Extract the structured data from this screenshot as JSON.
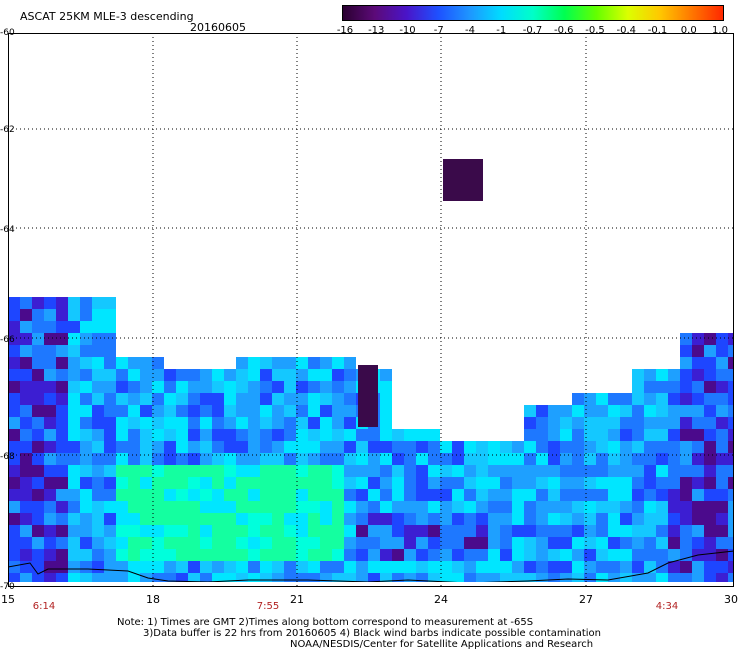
{
  "header": {
    "title": "ASCAT 25KM MLE-3 descending",
    "date": "20160605"
  },
  "colorbar": {
    "labels": [
      "-16",
      "-13",
      "-10",
      "-7",
      "-4",
      "-1",
      "-0.7",
      "-0.6",
      "-0.5",
      "-0.4",
      "-0.1",
      "0.0",
      "1.0"
    ],
    "colors": [
      "#2a0030",
      "#5c0a78",
      "#4a14c8",
      "#1e50ff",
      "#1e96ff",
      "#00dcff",
      "#00ffc8",
      "#00ff50",
      "#64ff00",
      "#dcff00",
      "#ffc800",
      "#ff7800",
      "#ff2800"
    ]
  },
  "axes": {
    "y_labels": [
      "-60",
      "-62",
      "-64",
      "-66",
      "-68",
      "-70"
    ],
    "x_labels": [
      "15",
      "18",
      "21",
      "24",
      "27",
      "30"
    ]
  },
  "pass_times": [
    "6:14",
    "7:55",
    "4:34"
  ],
  "notes": {
    "line1": "Note: 1) Times are GMT 2)Times along bottom correspond to measurement at -65S",
    "line2": "3)Data buffer is 22 hrs from 20160605 4) Black wind barbs indicate possible contamination",
    "line3": "NOAA/NESDIS/Center for Satellite Applications and Research"
  }
}
